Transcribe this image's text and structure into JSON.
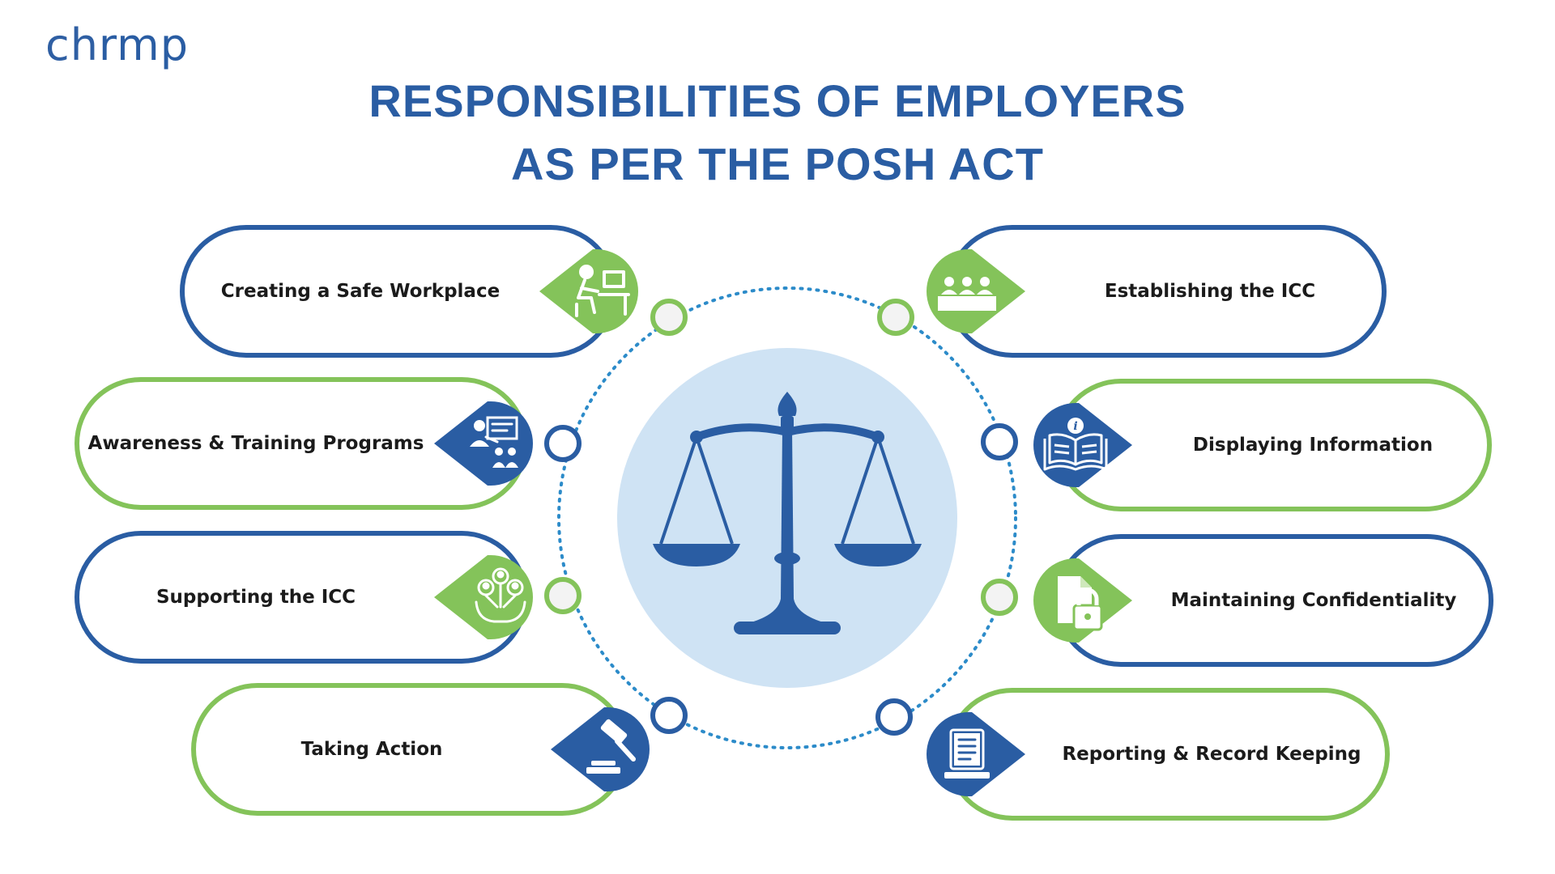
{
  "brand": {
    "logo_part1": "ch",
    "logo_part2": "rmp"
  },
  "title": {
    "line1": "RESPONSIBILITIES OF EMPLOYERS",
    "line2": "AS PER THE POSH ACT"
  },
  "colors": {
    "blue": "#2a5da3",
    "green": "#84c35a",
    "center_circle": "#cfe3f4",
    "dotted_ring": "#2c8bc9",
    "title": "#2a5da3"
  },
  "center": {
    "icon": "scales-of-justice-icon"
  },
  "left_items": [
    {
      "label": "Creating a Safe Workplace",
      "icon": "worker-at-desk-icon",
      "pill_color": "blue",
      "badge_color": "green"
    },
    {
      "label": "Awareness & Training Programs",
      "icon": "presentation-training-icon",
      "pill_color": "green",
      "badge_color": "blue"
    },
    {
      "label": "Supporting the ICC",
      "icon": "supporting-people-hands-icon",
      "pill_color": "blue",
      "badge_color": "green"
    },
    {
      "label": "Taking Action",
      "icon": "gavel-icon",
      "pill_color": "green",
      "badge_color": "blue"
    }
  ],
  "right_items": [
    {
      "label": "Establishing the ICC",
      "icon": "committee-meeting-icon",
      "pill_color": "blue",
      "badge_color": "green"
    },
    {
      "label": "Displaying Information",
      "icon": "information-book-icon",
      "pill_color": "green",
      "badge_color": "blue"
    },
    {
      "label": "Maintaining Confidentiality",
      "icon": "locked-document-icon",
      "pill_color": "blue",
      "badge_color": "green"
    },
    {
      "label": "Reporting & Record Keeping",
      "icon": "record-document-icon",
      "pill_color": "green",
      "badge_color": "blue"
    }
  ]
}
